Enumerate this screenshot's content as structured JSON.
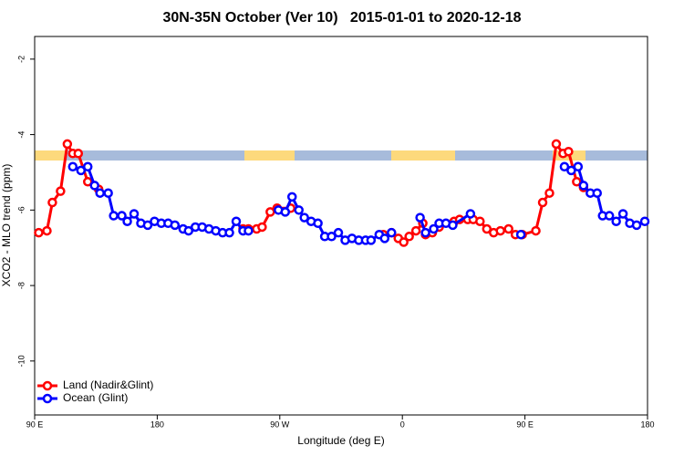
{
  "chart_data": {
    "type": "line",
    "title": "30N-35N October (Ver 10)   2015-01-01 to 2020-12-18",
    "xlabel": "Longitude (deg E)",
    "ylabel": "XCO2 - MLO trend (ppm)",
    "xlim": [
      90,
      540
    ],
    "xticks": [
      {
        "value": 90,
        "label": "90 E"
      },
      180,
      {
        "value": 270,
        "label": "90 W"
      },
      {
        "value": 360,
        "label": "0"
      },
      {
        "value": 450,
        "label": "90 E"
      },
      {
        "value": 540,
        "label": "180"
      }
    ],
    "ylim": [
      -11.43,
      -1.4
    ],
    "yticks": [
      -2,
      -4,
      -6,
      -8,
      -10
    ],
    "legend": "bottom-left",
    "series": [
      {
        "name": "Land (Nadir&Glint)",
        "color": "#ff0000",
        "x": [
          93,
          99,
          103,
          109,
          114,
          118,
          122,
          129,
          137,
          null,
          243,
          247,
          253,
          257,
          263,
          268,
          278,
          null,
          346,
          352,
          357,
          361,
          365,
          370,
          375,
          377,
          382,
          387,
          398,
          402,
          408,
          412,
          417,
          422,
          427,
          432,
          438,
          443,
          448,
          458,
          463,
          468,
          473,
          478,
          482,
          488,
          493
        ],
        "values": [
          -6.6,
          -6.55,
          -5.8,
          -5.5,
          -4.25,
          -4.5,
          -4.5,
          -5.25,
          -5.45,
          null,
          -6.5,
          -6.5,
          -6.5,
          -6.45,
          -6.05,
          -5.95,
          -5.95,
          null,
          -6.65,
          -6.6,
          -6.75,
          -6.85,
          -6.7,
          -6.55,
          -6.35,
          -6.65,
          -6.6,
          -6.45,
          -6.3,
          -6.25,
          -6.25,
          -6.25,
          -6.3,
          -6.5,
          -6.6,
          -6.55,
          -6.5,
          -6.65,
          -6.65,
          -6.55,
          -5.8,
          -5.55,
          -4.25,
          -4.5,
          -4.45,
          -5.25,
          -5.4
        ]
      },
      {
        "name": "Ocean (Glint)",
        "color": "#0000ff",
        "x": [
          118,
          124,
          129,
          134,
          138,
          144,
          148,
          154,
          158,
          163,
          168,
          173,
          178,
          183,
          188,
          193,
          199,
          203,
          208,
          213,
          218,
          223,
          228,
          233,
          238,
          243,
          247,
          null,
          269,
          274,
          279,
          284,
          288,
          293,
          298,
          303,
          308,
          313,
          318,
          323,
          328,
          333,
          337,
          343,
          347,
          352,
          null,
          373,
          377,
          383,
          387,
          392,
          397,
          410,
          null,
          447,
          null,
          479,
          484,
          489,
          493,
          498,
          503,
          507,
          512,
          517,
          522,
          527,
          532,
          538
        ],
        "values": [
          -4.85,
          -4.95,
          -4.85,
          -5.35,
          -5.55,
          -5.55,
          -6.15,
          -6.15,
          -6.3,
          -6.1,
          -6.35,
          -6.4,
          -6.3,
          -6.35,
          -6.35,
          -6.4,
          -6.5,
          -6.55,
          -6.45,
          -6.45,
          -6.5,
          -6.55,
          -6.6,
          -6.6,
          -6.3,
          -6.55,
          -6.55,
          null,
          -6.0,
          -6.05,
          -5.65,
          -6.0,
          -6.2,
          -6.3,
          -6.35,
          -6.7,
          -6.7,
          -6.6,
          -6.8,
          -6.75,
          -6.8,
          -6.8,
          -6.8,
          -6.65,
          -6.75,
          -6.6,
          null,
          -6.2,
          -6.6,
          -6.5,
          -6.35,
          -6.35,
          -6.4,
          -6.1,
          null,
          -6.65,
          null,
          -4.85,
          -4.95,
          -4.85,
          -5.35,
          -5.55,
          -5.55,
          -6.15,
          -6.15,
          -6.3,
          -6.1,
          -6.35,
          -6.4,
          -6.3
        ]
      }
    ]
  }
}
